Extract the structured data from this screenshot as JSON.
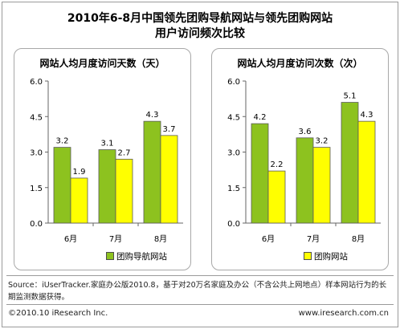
{
  "title_line1": "2010年6-8月中国领先团购导航网站与领先团购网站",
  "title_line2": "用户访问频次比较",
  "legend": {
    "series_a": "团购导航网站",
    "series_b": "团购网站"
  },
  "colors": {
    "series_a": "#8dc21f",
    "series_b": "#ffff00",
    "bar_stroke": "#5a5a5a"
  },
  "chart_data": [
    {
      "type": "bar",
      "title": "网站人均月度访问天数（天）",
      "categories": [
        "6月",
        "7月",
        "8月"
      ],
      "series": [
        {
          "name": "团购导航网站",
          "values": [
            3.2,
            3.1,
            4.3
          ]
        },
        {
          "name": "团购网站",
          "values": [
            1.9,
            2.7,
            3.7
          ]
        }
      ],
      "yticks": [
        "0.0",
        "1.5",
        "3.0",
        "4.5",
        "6.0"
      ],
      "ylim": [
        0,
        6
      ],
      "legend_position": "bottom-left"
    },
    {
      "type": "bar",
      "title": "网站人均月度访问次数（次）",
      "categories": [
        "6月",
        "7月",
        "8月"
      ],
      "series": [
        {
          "name": "团购导航网站",
          "values": [
            4.2,
            3.6,
            5.1
          ]
        },
        {
          "name": "团购网站",
          "values": [
            2.2,
            3.2,
            4.3
          ]
        }
      ],
      "yticks": [
        "0.0",
        "1.5",
        "3.0",
        "4.5",
        "6.0"
      ],
      "ylim": [
        0,
        6
      ],
      "legend_position": "bottom-right"
    }
  ],
  "source_text": "Source：iUserTracker.家庭办公版2010.8，基于对20万名家庭及办公（不含公共上网地点）样本网站行为的长期监测数据获得。",
  "footer": {
    "copyright": "©2010.10 iResearch Inc.",
    "website": "www.iresearch.com.cn"
  }
}
